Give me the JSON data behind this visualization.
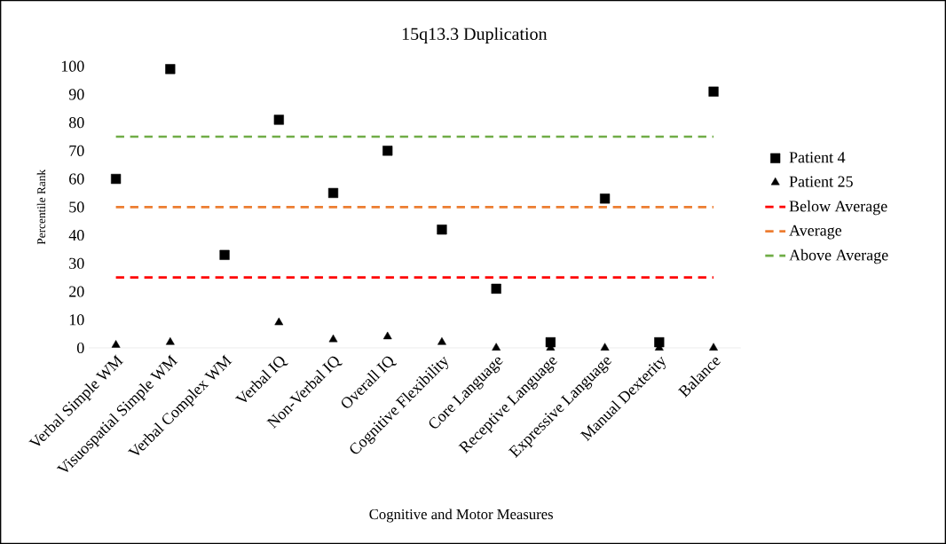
{
  "chart_data": {
    "type": "scatter",
    "title": "15q13.3 Duplication",
    "xlabel": "Cognitive and Motor Measures",
    "ylabel": "Percentile Rank",
    "categories": [
      "Verbal Simple WM",
      "Visuospatial Simple WM",
      "Verbal Complex WM",
      "Verbal IQ",
      "Non-Verbal IQ",
      "Overall IQ",
      "Cognitive Flexibility",
      "Core Language",
      "Receptive Language",
      "Expressive Language",
      "Manual Dexterity",
      "Balance"
    ],
    "series": [
      {
        "name": "Patient 4",
        "color": "#000000",
        "marker": "square",
        "values": [
          60,
          99,
          33,
          81,
          55,
          70,
          42,
          21,
          2,
          53,
          2,
          91
        ]
      },
      {
        "name": "Patient 25",
        "color": "#000000",
        "marker": "triangle",
        "values": [
          1,
          2,
          null,
          9,
          3,
          4,
          2,
          0,
          0,
          0,
          0,
          0
        ]
      }
    ],
    "ref_lines": [
      {
        "axis": "y",
        "value": 25,
        "label": "Below Average",
        "color": "#ff0000",
        "line_style": "dashed"
      },
      {
        "axis": "y",
        "value": 50,
        "label": "Average",
        "color": "#ed7d31",
        "line_style": "dashed"
      },
      {
        "axis": "y",
        "value": 75,
        "label": "Above Average",
        "color": "#70ad47",
        "line_style": "dashed"
      }
    ],
    "ylim": [
      0,
      100
    ],
    "yticks": [
      0,
      10,
      20,
      30,
      40,
      50,
      60,
      70,
      80,
      90,
      100
    ],
    "grid": false,
    "legend": "right"
  }
}
